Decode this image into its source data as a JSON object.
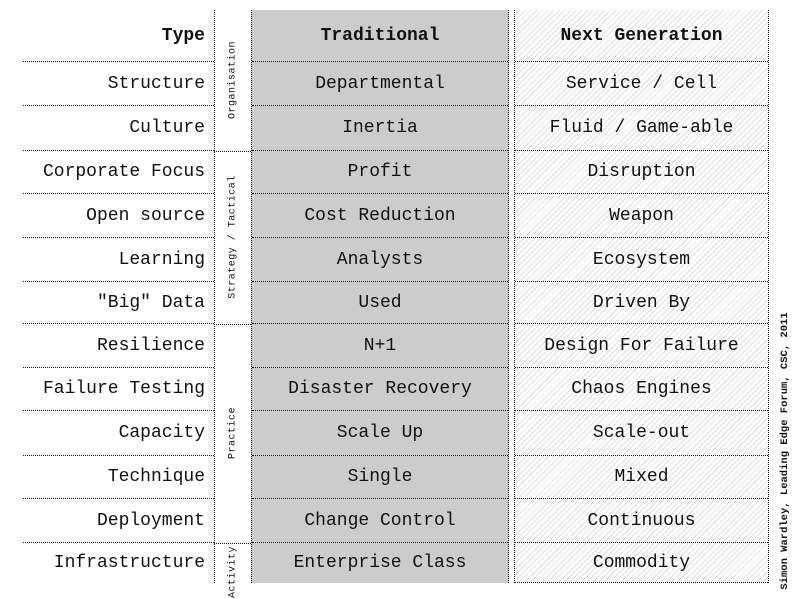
{
  "table": {
    "rows": [
      {
        "label": "Type",
        "traditional": "Traditional",
        "next_generation": "Next Generation",
        "is_header": true
      },
      {
        "label": "Structure",
        "traditional": "Departmental",
        "next_generation": "Service / Cell"
      },
      {
        "label": "Culture",
        "traditional": "Inertia",
        "next_generation": "Fluid / Game-able"
      },
      {
        "label": "Corporate Focus",
        "traditional": "Profit",
        "next_generation": "Disruption"
      },
      {
        "label": "Open source",
        "traditional": "Cost Reduction",
        "next_generation": "Weapon"
      },
      {
        "label": "Learning",
        "traditional": "Analysts",
        "next_generation": "Ecosystem"
      },
      {
        "label": "\"Big\" Data",
        "traditional": "Used",
        "next_generation": "Driven By"
      },
      {
        "label": "Resilience",
        "traditional": "N+1",
        "next_generation": "Design For Failure"
      },
      {
        "label": "Failure Testing",
        "traditional": "Disaster Recovery",
        "next_generation": "Chaos Engines"
      },
      {
        "label": "Capacity",
        "traditional": "Scale Up",
        "next_generation": "Scale-out"
      },
      {
        "label": "Technique",
        "traditional": "Single",
        "next_generation": "Mixed"
      },
      {
        "label": "Deployment",
        "traditional": "Change Control",
        "next_generation": "Continuous"
      },
      {
        "label": "Infrastructure",
        "traditional": "Enterprise Class",
        "next_generation": "Commodity"
      }
    ],
    "groups": [
      {
        "label": "Organisation"
      },
      {
        "label": "Strategy / Tactical"
      },
      {
        "label": "Practice"
      },
      {
        "label": "Activity"
      }
    ]
  },
  "attribution": "Simon Wardley, Leading Edge Forum, CSC, 2011",
  "colors": {
    "traditional_bg": "#cccccc",
    "hatch_line": "#e0e0e0",
    "line_color": "#1a1a1a",
    "text_color": "#111111"
  }
}
